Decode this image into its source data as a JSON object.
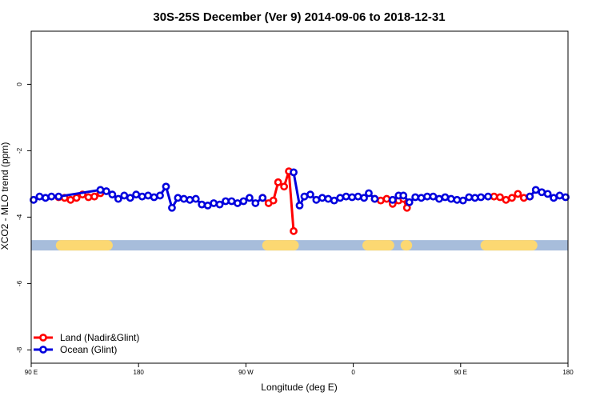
{
  "chart_data": {
    "type": "line",
    "title": "30S-25S December (Ver 9)   2014-09-06 to 2018-12-31",
    "xlabel": "Longitude (deg E)",
    "ylabel": "XCO2 - MLO trend (ppm)",
    "xlim": [
      90,
      540
    ],
    "ylim": [
      -8.4,
      1.6
    ],
    "x_ticks": [
      {
        "value": 90,
        "label": "90 E"
      },
      {
        "value": 180,
        "label": "180"
      },
      {
        "value": 270,
        "label": "90 W"
      },
      {
        "value": 360,
        "label": "0"
      },
      {
        "value": 450,
        "label": "90 E"
      },
      {
        "value": 540,
        "label": "180"
      }
    ],
    "y_ticks": [
      {
        "value": 0,
        "label": "0"
      },
      {
        "value": -2,
        "label": "-2"
      },
      {
        "value": -4,
        "label": "-4"
      },
      {
        "value": -6,
        "label": "-6"
      },
      {
        "value": -8,
        "label": "-8"
      }
    ],
    "legend": {
      "position": "bottom-left",
      "entries": [
        {
          "name": "Land (Nadir&Glint)",
          "color": "#ff0000"
        },
        {
          "name": "Ocean (Glint)",
          "color": "#0000dd"
        }
      ]
    },
    "land_ocean_band": {
      "y": -4.85,
      "ocean_color": "#a7bddb",
      "land_color": "#fcd872",
      "land_segments": [
        [
          115,
          154
        ],
        [
          288,
          310
        ],
        [
          372,
          390
        ],
        [
          404,
          405
        ],
        [
          471,
          510
        ]
      ]
    },
    "series": [
      {
        "name": "Land (Nadir&Glint)",
        "color": "#ff0000",
        "segments": [
          [
            [
              113,
              -3.4
            ],
            [
              118,
              -3.42
            ],
            [
              123,
              -3.48
            ],
            [
              128,
              -3.42
            ],
            [
              133,
              -3.32
            ],
            [
              138,
              -3.4
            ],
            [
              143,
              -3.38
            ],
            [
              148,
              -3.28
            ]
          ],
          [
            [
              284,
              -3.42
            ],
            [
              289,
              -3.58
            ],
            [
              293,
              -3.5
            ],
            [
              297,
              -2.95
            ],
            [
              302,
              -3.08
            ],
            [
              306,
              -2.62
            ],
            [
              310,
              -4.42
            ]
          ],
          [
            [
              378,
              -3.45
            ],
            [
              383,
              -3.5
            ],
            [
              388,
              -3.45
            ],
            [
              393,
              -3.6
            ],
            [
              398,
              -3.5
            ],
            [
              402,
              -3.45
            ],
            [
              405,
              -3.72
            ]
          ],
          [
            [
              478,
              -3.38
            ],
            [
              483,
              -3.4
            ],
            [
              488,
              -3.48
            ],
            [
              493,
              -3.42
            ],
            [
              498,
              -3.3
            ],
            [
              503,
              -3.42
            ],
            [
              508,
              -3.38
            ]
          ]
        ]
      },
      {
        "name": "Ocean (Glint)",
        "color": "#0000dd",
        "segments": [
          [
            [
              92,
              -3.48
            ],
            [
              97,
              -3.38
            ],
            [
              102,
              -3.42
            ],
            [
              107,
              -3.38
            ],
            [
              113,
              -3.38
            ],
            [
              148,
              -3.18
            ],
            [
              153,
              -3.22
            ],
            [
              158,
              -3.32
            ],
            [
              163,
              -3.45
            ],
            [
              168,
              -3.35
            ],
            [
              173,
              -3.42
            ],
            [
              178,
              -3.32
            ],
            [
              183,
              -3.38
            ],
            [
              188,
              -3.35
            ],
            [
              193,
              -3.4
            ],
            [
              198,
              -3.35
            ],
            [
              203,
              -3.08
            ],
            [
              208,
              -3.72
            ],
            [
              213,
              -3.42
            ],
            [
              218,
              -3.45
            ],
            [
              223,
              -3.48
            ],
            [
              228,
              -3.45
            ],
            [
              233,
              -3.62
            ],
            [
              238,
              -3.65
            ],
            [
              243,
              -3.58
            ],
            [
              248,
              -3.62
            ],
            [
              253,
              -3.52
            ],
            [
              258,
              -3.52
            ],
            [
              263,
              -3.58
            ],
            [
              268,
              -3.52
            ],
            [
              273,
              -3.42
            ],
            [
              278,
              -3.58
            ],
            [
              284,
              -3.42
            ]
          ],
          [
            [
              310,
              -2.65
            ],
            [
              315,
              -3.65
            ],
            [
              319,
              -3.38
            ],
            [
              324,
              -3.32
            ],
            [
              329,
              -3.48
            ],
            [
              334,
              -3.42
            ],
            [
              339,
              -3.45
            ],
            [
              344,
              -3.5
            ],
            [
              349,
              -3.42
            ],
            [
              354,
              -3.38
            ],
            [
              359,
              -3.4
            ],
            [
              364,
              -3.38
            ],
            [
              369,
              -3.42
            ],
            [
              373,
              -3.28
            ],
            [
              378,
              -3.45
            ]
          ],
          [
            [
              393,
              -3.48
            ],
            [
              398,
              -3.35
            ],
            [
              402,
              -3.35
            ],
            [
              407,
              -3.55
            ],
            [
              412,
              -3.4
            ],
            [
              417,
              -3.42
            ],
            [
              422,
              -3.38
            ],
            [
              427,
              -3.38
            ],
            [
              432,
              -3.45
            ],
            [
              437,
              -3.4
            ],
            [
              442,
              -3.45
            ],
            [
              447,
              -3.48
            ],
            [
              452,
              -3.5
            ],
            [
              457,
              -3.4
            ],
            [
              462,
              -3.42
            ],
            [
              467,
              -3.4
            ],
            [
              473,
              -3.38
            ]
          ],
          [
            [
              508,
              -3.38
            ],
            [
              513,
              -3.18
            ],
            [
              518,
              -3.25
            ],
            [
              523,
              -3.3
            ],
            [
              528,
              -3.42
            ],
            [
              533,
              -3.35
            ],
            [
              538,
              -3.4
            ]
          ]
        ]
      }
    ]
  }
}
